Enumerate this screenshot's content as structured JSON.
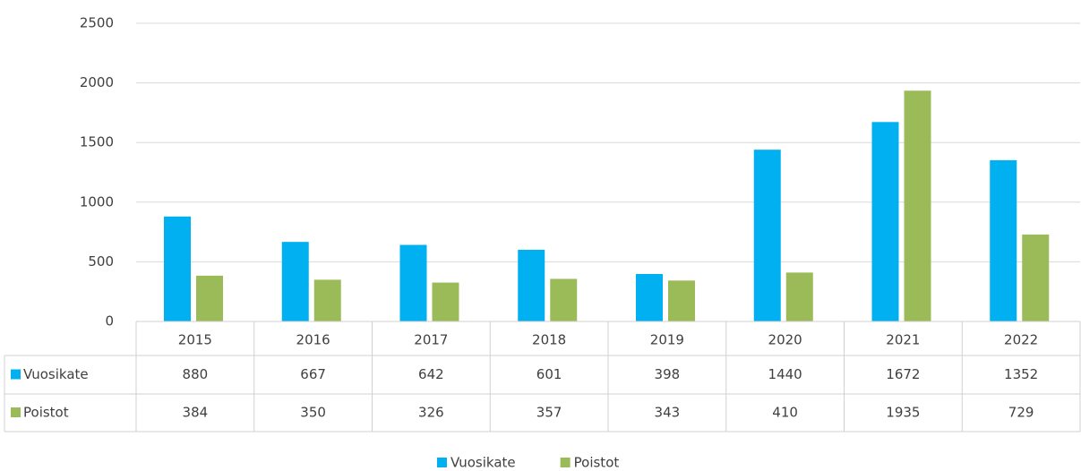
{
  "chart_data": {
    "type": "bar",
    "categories": [
      "2015",
      "2016",
      "2017",
      "2018",
      "2019",
      "2020",
      "2021",
      "2022"
    ],
    "series": [
      {
        "name": "Vuosikate",
        "color": "#00b0f0",
        "values": [
          880,
          667,
          642,
          601,
          398,
          1440,
          1672,
          1352
        ]
      },
      {
        "name": "Poistot",
        "color": "#9bbb59",
        "values": [
          384,
          350,
          326,
          357,
          343,
          410,
          1935,
          729
        ]
      }
    ],
    "ylim": [
      0,
      2500
    ],
    "yticks": [
      0,
      500,
      1000,
      1500,
      2000,
      2500
    ],
    "grid": true,
    "legend": "bottom"
  }
}
